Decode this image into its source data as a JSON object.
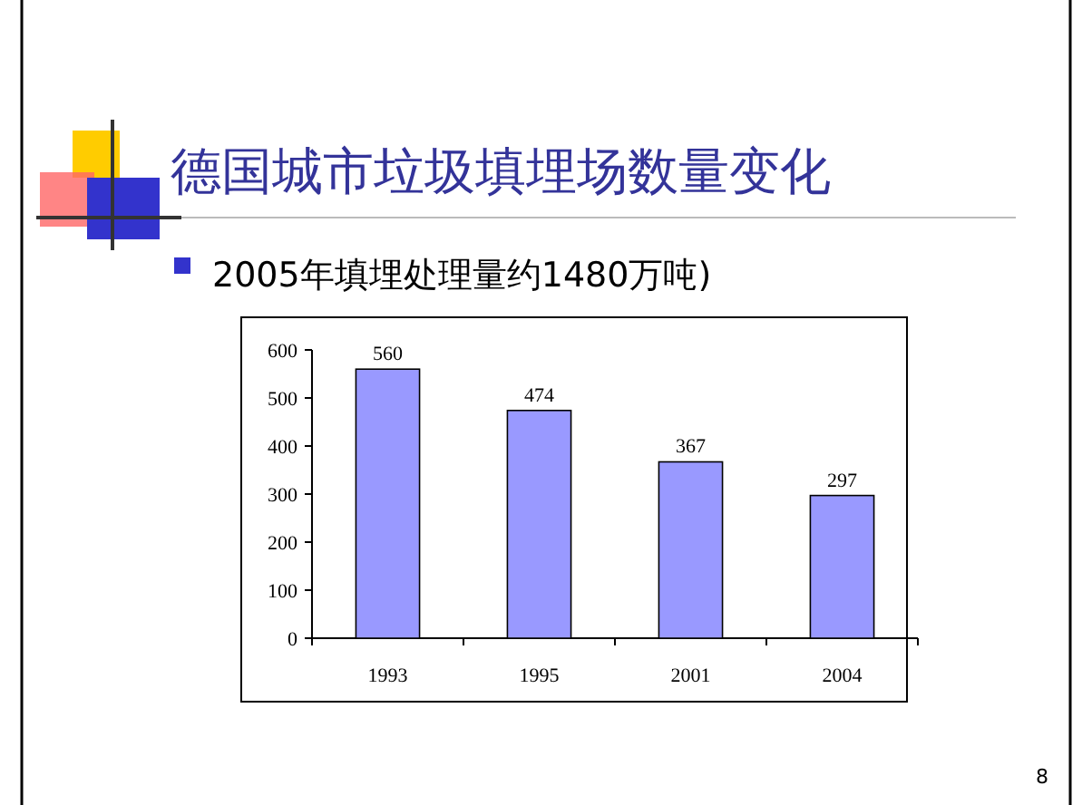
{
  "chart_data": {
    "type": "bar",
    "title": "德国城市垃圾填埋场数量变化",
    "subtitle": "2005年填埋处理量约1480万吨)",
    "categories": [
      "1993",
      "1995",
      "2001",
      "2004"
    ],
    "values": [
      560,
      474,
      367,
      297
    ],
    "color": "#9999ff",
    "ylim": [
      0,
      600
    ],
    "yticks": [
      0,
      100,
      200,
      300,
      400,
      500,
      600
    ],
    "data_labels": true,
    "annotations": [
      "8"
    ]
  }
}
